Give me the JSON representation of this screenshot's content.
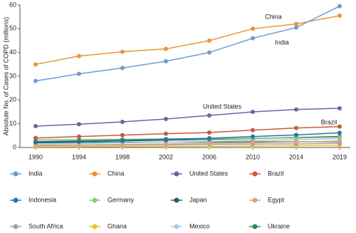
{
  "chart_data": {
    "type": "line",
    "y_label": "Absolute No. of Cases of COPD (millions)",
    "categories": [
      "1990",
      "1994",
      "1998",
      "2002",
      "2006",
      "2010",
      "2014",
      "2019"
    ],
    "ylim": [
      0,
      60
    ],
    "yticks": [
      0,
      10,
      20,
      30,
      40,
      50,
      60
    ],
    "grid": false,
    "annotations": [
      "China",
      "India",
      "United States",
      "Brazil"
    ],
    "series": [
      {
        "name": "India",
        "color": "#6f9bd1",
        "values": [
          28,
          31,
          33.5,
          36.3,
          40,
          46,
          50.5,
          59.5
        ]
      },
      {
        "name": "China",
        "color": "#e8953a",
        "values": [
          35,
          38.5,
          40.3,
          41.5,
          45,
          50,
          52,
          55.5
        ]
      },
      {
        "name": "United States",
        "color": "#7b5ba6",
        "values": [
          9,
          9.8,
          10.8,
          12,
          13.5,
          15,
          16,
          16.5
        ]
      },
      {
        "name": "Brazil",
        "color": "#c85a3b",
        "values": [
          4,
          4.6,
          5.2,
          5.8,
          6.3,
          7.3,
          8.2,
          8.8
        ]
      },
      {
        "name": "Indonesia",
        "color": "#2677a8",
        "values": [
          2.5,
          2.8,
          3.1,
          3.5,
          3.9,
          4.6,
          5.3,
          6.2
        ]
      },
      {
        "name": "Germany",
        "color": "#90c86c",
        "values": [
          3.3,
          3.4,
          3.5,
          3.6,
          3.7,
          3.9,
          4,
          4.3
        ]
      },
      {
        "name": "Japan",
        "color": "#285a6e",
        "values": [
          2.2,
          2.5,
          2.8,
          3.1,
          3.4,
          3.8,
          4.2,
          4.6
        ]
      },
      {
        "name": "Egypt",
        "color": "#e0a184",
        "values": [
          1,
          1.1,
          1.3,
          1.5,
          1.7,
          2,
          2.3,
          2.7
        ]
      },
      {
        "name": "South Africa",
        "color": "#a3a3a3",
        "values": [
          0.8,
          0.9,
          1,
          1.1,
          1.3,
          1.4,
          1.5,
          1.7
        ]
      },
      {
        "name": "Ghana",
        "color": "#f0c227",
        "values": [
          0.3,
          0.35,
          0.4,
          0.45,
          0.5,
          0.6,
          0.7,
          0.8
        ]
      },
      {
        "name": "Mexico",
        "color": "#a9c9e8",
        "values": [
          1.5,
          1.7,
          2,
          2.3,
          2.6,
          3,
          3.3,
          3.7
        ]
      },
      {
        "name": "Ukraine",
        "color": "#2e8b57",
        "values": [
          2,
          2.1,
          2.2,
          2.3,
          2.3,
          2.4,
          2.4,
          2.4
        ]
      }
    ]
  }
}
